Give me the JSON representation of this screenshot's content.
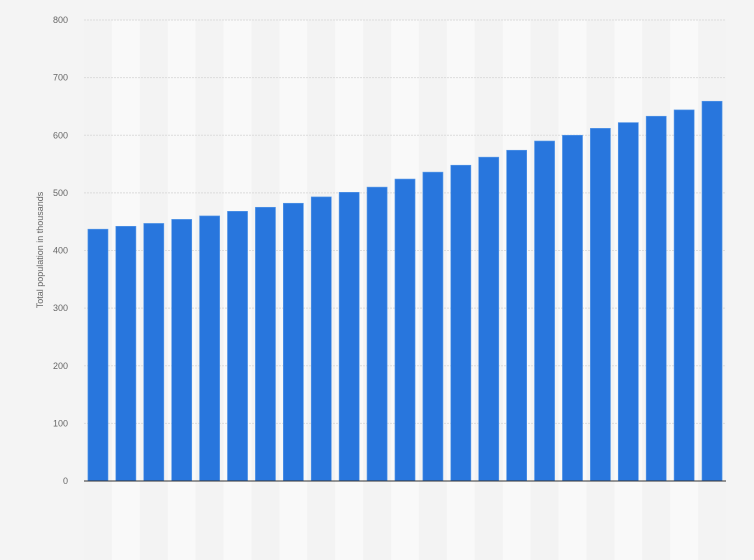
{
  "chart_data": {
    "type": "bar",
    "title": "",
    "xlabel": "",
    "ylabel": "Total population in thousands",
    "ylim": [
      0,
      800
    ],
    "yticks": [
      0,
      100,
      200,
      300,
      400,
      500,
      600,
      700,
      800
    ],
    "grid": true,
    "bar_color": "#2876dd",
    "values": [
      437,
      442,
      447,
      454,
      460,
      468,
      475,
      482,
      493,
      501,
      510,
      524,
      536,
      548,
      562,
      574,
      590,
      600,
      612,
      622,
      633,
      644,
      659
    ]
  }
}
